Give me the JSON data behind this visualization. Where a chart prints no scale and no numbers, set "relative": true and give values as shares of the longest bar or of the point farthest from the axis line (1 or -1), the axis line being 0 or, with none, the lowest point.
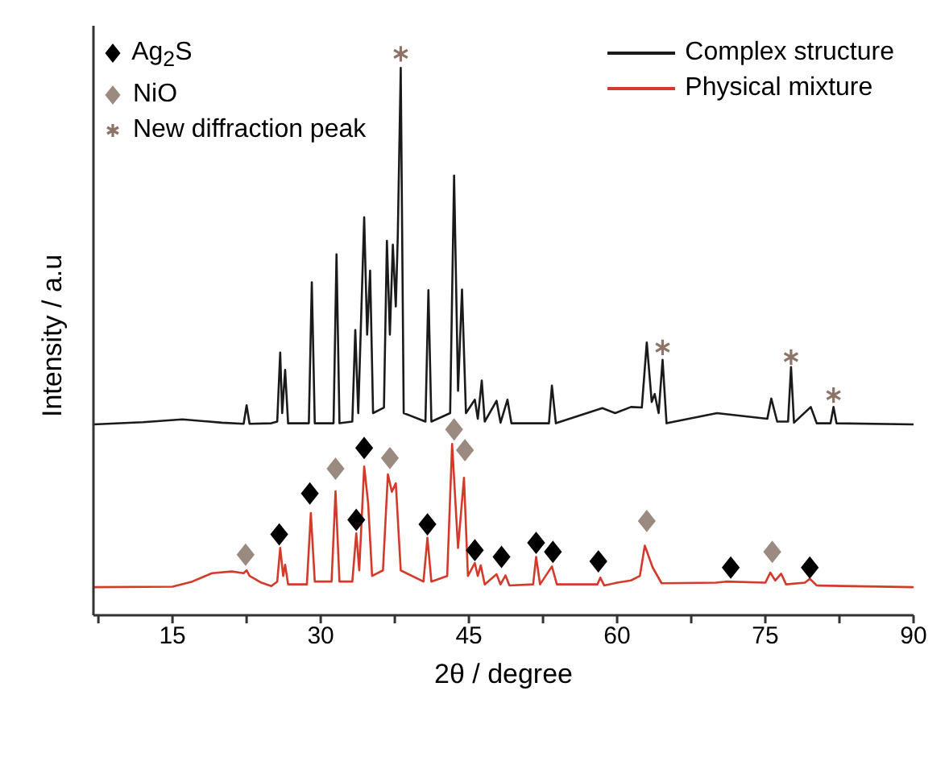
{
  "chart_data": {
    "type": "line",
    "relative": true,
    "xlabel": "2θ / degree",
    "ylabel": "Intensity / a.u",
    "xlim": [
      7,
      90
    ],
    "xticks": [
      {
        "value": 7.5,
        "label": null
      },
      15,
      {
        "value": 22.5,
        "label": null
      },
      30,
      {
        "value": 37.5,
        "label": null
      },
      45,
      {
        "value": 52.5,
        "label": null
      },
      60,
      {
        "value": 67.5,
        "label": null
      },
      75,
      {
        "value": 82.5,
        "label": null
      },
      90
    ],
    "legend": "top",
    "grid": false,
    "series": [
      {
        "name": "Complex structure",
        "color": "#1a1a1a",
        "marker": "none",
        "x": [
          7,
          12,
          16,
          20,
          22.2,
          22.5,
          22.8,
          25,
          25.6,
          25.9,
          26.1,
          26.4,
          26.7,
          28.8,
          29.1,
          29.4,
          31.3,
          31.6,
          31.9,
          33.2,
          33.5,
          33.8,
          34.4,
          34.7,
          35.0,
          35.3,
          36.4,
          36.7,
          37.0,
          37.3,
          37.6,
          37.8,
          38.1,
          38.4,
          40.6,
          40.9,
          41.2,
          43.1,
          43.5,
          43.9,
          44.3,
          44.7,
          45.6,
          45.9,
          46.3,
          46.6,
          47.8,
          48.2,
          48.9,
          49.3,
          53.1,
          53.4,
          53.8,
          58.5,
          59.8,
          61.4,
          62.5,
          63.0,
          63.5,
          63.8,
          64.2,
          64.6,
          65,
          70.1,
          75.2,
          75.6,
          76.2,
          77.3,
          77.6,
          77.9,
          79.6,
          80.2,
          81.6,
          81.9,
          82.2,
          90
        ],
        "values": [
          0.34,
          0.344,
          0.349,
          0.343,
          0.341,
          0.374,
          0.341,
          0.342,
          0.345,
          0.468,
          0.36,
          0.437,
          0.342,
          0.342,
          0.593,
          0.342,
          0.342,
          0.643,
          0.342,
          0.345,
          0.508,
          0.36,
          0.709,
          0.5,
          0.614,
          0.36,
          0.37,
          0.667,
          0.5,
          0.66,
          0.55,
          0.675,
          0.975,
          0.36,
          0.345,
          0.579,
          0.345,
          0.36,
          0.783,
          0.4,
          0.58,
          0.36,
          0.384,
          0.35,
          0.418,
          0.345,
          0.382,
          0.343,
          0.384,
          0.342,
          0.342,
          0.409,
          0.342,
          0.369,
          0.36,
          0.371,
          0.37,
          0.486,
          0.38,
          0.394,
          0.36,
          0.455,
          0.342,
          0.36,
          0.35,
          0.386,
          0.345,
          0.345,
          0.442,
          0.343,
          0.371,
          0.342,
          0.342,
          0.371,
          0.342,
          0.34
        ]
      },
      {
        "name": "Physical mixture",
        "color": "#d43a2a",
        "marker": "none",
        "x": [
          7,
          15,
          17,
          19,
          21,
          22.2,
          22.5,
          22.8,
          24,
          25,
          25.6,
          25.9,
          26.2,
          26.4,
          26.7,
          28.6,
          29.0,
          29.4,
          31.1,
          31.5,
          31.9,
          33.2,
          33.6,
          33.9,
          34.4,
          34.8,
          35.2,
          36.3,
          36.8,
          37.2,
          37.6,
          38.1,
          40.4,
          40.8,
          41.2,
          42.8,
          43.3,
          43.9,
          44.5,
          44.9,
          45.6,
          45.9,
          46.2,
          46.6,
          47.8,
          48.2,
          48.7,
          49.1,
          51.5,
          51.8,
          52.2,
          53.4,
          53.9,
          58.0,
          58.3,
          58.7,
          60,
          61.4,
          62.3,
          62.8,
          63.6,
          64.5,
          70,
          71,
          75,
          75.5,
          76,
          76.6,
          77.1,
          79,
          79.5,
          80.2,
          90
        ],
        "values": [
          0.05,
          0.051,
          0.06,
          0.075,
          0.078,
          0.075,
          0.08,
          0.07,
          0.058,
          0.052,
          0.06,
          0.12,
          0.07,
          0.09,
          0.055,
          0.055,
          0.182,
          0.06,
          0.06,
          0.221,
          0.06,
          0.06,
          0.146,
          0.08,
          0.265,
          0.2,
          0.07,
          0.08,
          0.251,
          0.22,
          0.235,
          0.08,
          0.06,
          0.138,
          0.06,
          0.07,
          0.305,
          0.12,
          0.245,
          0.07,
          0.093,
          0.07,
          0.089,
          0.055,
          0.073,
          0.055,
          0.071,
          0.053,
          0.055,
          0.104,
          0.055,
          0.087,
          0.055,
          0.055,
          0.067,
          0.053,
          0.058,
          0.062,
          0.07,
          0.124,
          0.085,
          0.057,
          0.058,
          0.06,
          0.058,
          0.076,
          0.062,
          0.074,
          0.055,
          0.058,
          0.065,
          0.053,
          0.05
        ]
      },
      {
        "name": "Ag$_{2}$S",
        "type": "scatter",
        "color": "#000000",
        "marker": "diamond",
        "x": [
          25.8,
          28.9,
          33.6,
          34.4,
          40.8,
          45.6,
          48.3,
          51.8,
          53.5,
          58.1,
          71.5,
          79.5
        ],
        "values": [
          0.144,
          0.217,
          0.17,
          0.298,
          0.162,
          0.116,
          0.104,
          0.129,
          0.113,
          0.096,
          0.085,
          0.085
        ]
      },
      {
        "name": "NiO",
        "type": "scatter",
        "color": "#9a8a80",
        "marker": "diamond",
        "x": [
          22.4,
          31.5,
          37.0,
          43.5,
          44.6,
          63.0,
          75.7
        ],
        "values": [
          0.108,
          0.261,
          0.28,
          0.331,
          0.294,
          0.168,
          0.113
        ]
      },
      {
        "name": "New diffraction peak",
        "type": "scatter",
        "color": "#8c7468",
        "marker": "cross",
        "x": [
          38.1,
          64.6,
          77.6,
          81.9
        ],
        "values": [
          1.0,
          0.477,
          0.46,
          0.392
        ]
      }
    ]
  }
}
